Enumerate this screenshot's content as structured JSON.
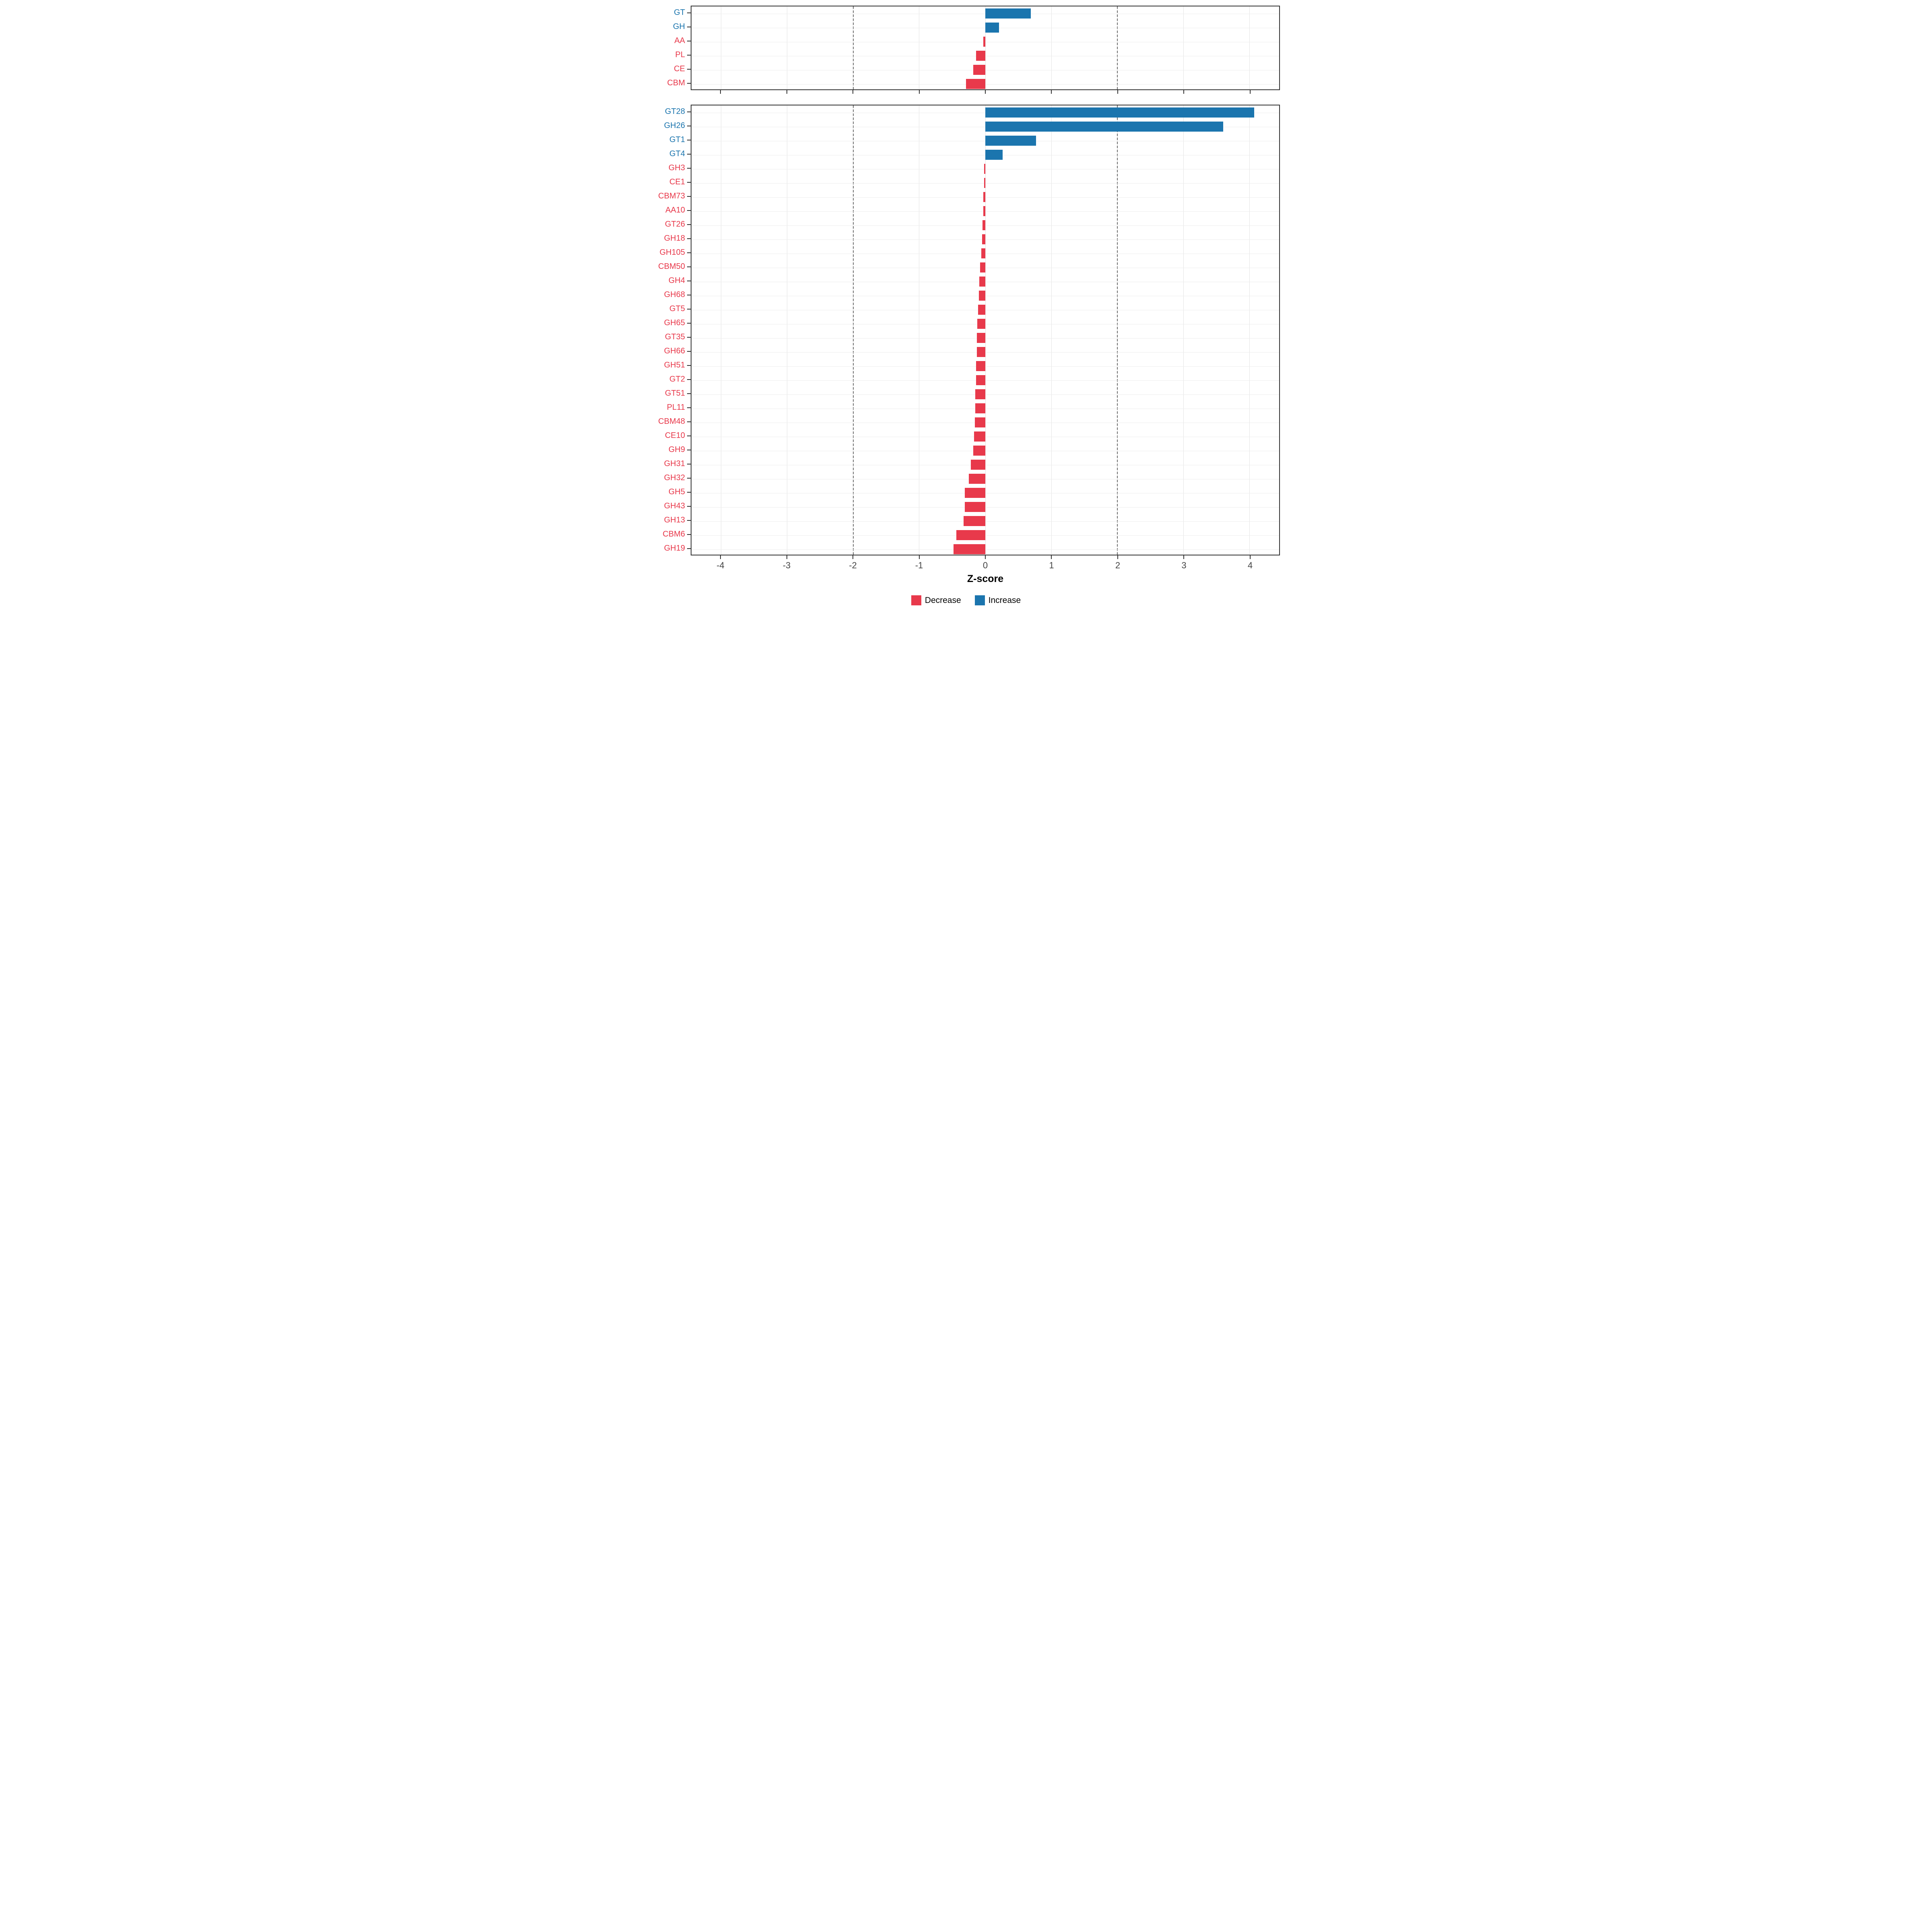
{
  "chart_data": {
    "type": "bar",
    "orientation": "horizontal",
    "xlabel": "Z-score",
    "xlim": [
      -4.45,
      4.45
    ],
    "xticks": [
      -4,
      -3,
      -2,
      -1,
      0,
      1,
      2,
      3,
      4
    ],
    "dashed_reference_lines": [
      -2,
      2
    ],
    "grid": true,
    "colors": {
      "decrease": "#E8394B",
      "increase": "#1B75AE"
    },
    "legend": {
      "position": "bottom",
      "items": [
        {
          "label": "Decrease",
          "color": "#E8394B"
        },
        {
          "label": "Increase",
          "color": "#1B75AE"
        }
      ]
    },
    "panels": [
      {
        "name": "cazyme-class-summary",
        "categories": [
          "GT",
          "GH",
          "AA",
          "PL",
          "CE",
          "CBM"
        ],
        "values": [
          0.69,
          0.21,
          -0.03,
          -0.14,
          -0.18,
          -0.29
        ]
      },
      {
        "name": "cazyme-family-detail",
        "categories": [
          "GT28",
          "GH26",
          "GT1",
          "GT4",
          "GH3",
          "CE1",
          "CBM73",
          "AA10",
          "GT26",
          "GH18",
          "GH105",
          "CBM50",
          "GH4",
          "GH68",
          "GT5",
          "GH65",
          "GT35",
          "GH66",
          "GH51",
          "GT2",
          "GT51",
          "PL11",
          "CBM48",
          "CE10",
          "GH9",
          "GH31",
          "GH32",
          "GH5",
          "GH43",
          "GH13",
          "CBM6",
          "GH19"
        ],
        "values": [
          4.07,
          3.6,
          0.77,
          0.26,
          -0.02,
          -0.02,
          -0.03,
          -0.03,
          -0.04,
          -0.05,
          -0.06,
          -0.08,
          -0.09,
          -0.1,
          -0.11,
          -0.12,
          -0.13,
          -0.13,
          -0.14,
          -0.14,
          -0.15,
          -0.15,
          -0.16,
          -0.17,
          -0.18,
          -0.22,
          -0.25,
          -0.31,
          -0.31,
          -0.33,
          -0.44,
          -0.48
        ]
      }
    ]
  }
}
